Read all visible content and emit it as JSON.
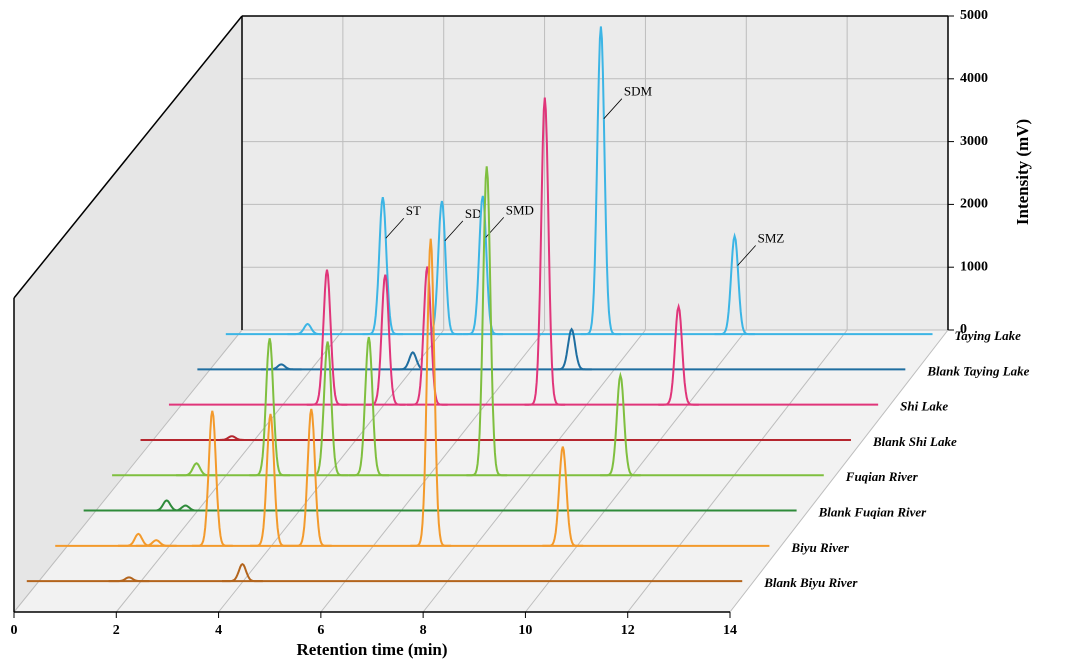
{
  "chart_data": {
    "type": "waterfall",
    "xlabel": "Retention time (min)",
    "zlabel": "Intensity (mV)",
    "xlim": [
      0,
      14
    ],
    "xticks": [
      0,
      2,
      4,
      6,
      8,
      10,
      12,
      14
    ],
    "zlim": [
      0,
      5000
    ],
    "zticks": [
      0,
      1000,
      2000,
      3000,
      4000,
      5000
    ],
    "grid": true,
    "series": [
      {
        "name": "Taying Lake",
        "color": "#3cb5e5",
        "x": [
          1.62,
          3.11,
          4.28,
          5.09,
          7.43,
          10.08
        ],
        "values": [
          160,
          2180,
          2120,
          2200,
          4900,
          1560
        ],
        "peak_labels": [
          null,
          "ST",
          "SD",
          "SMD",
          "SDM",
          "SMZ"
        ]
      },
      {
        "name": "Blank Taying Lake",
        "color": "#1f6ea0",
        "x": [
          1.66,
          4.26,
          7.4
        ],
        "values": [
          80,
          270,
          640
        ]
      },
      {
        "name": "Shi Lake",
        "color": "#e0357a",
        "x": [
          3.12,
          4.27,
          5.1,
          7.42,
          10.06
        ],
        "values": [
          2150,
          2070,
          2200,
          4890,
          1560
        ]
      },
      {
        "name": "Blank Shi Lake",
        "color": "#b5262e",
        "x": [
          1.8
        ],
        "values": [
          60
        ]
      },
      {
        "name": "Fuqian River",
        "color": "#7fbf3f",
        "x": [
          1.66,
          3.1,
          4.24,
          5.05,
          7.37,
          10.0
        ],
        "values": [
          190,
          2180,
          2130,
          2200,
          4920,
          1590
        ]
      },
      {
        "name": "Blank Fuqian River",
        "color": "#2e8b3a",
        "x": [
          1.63,
          2.0
        ],
        "values": [
          160,
          80
        ]
      },
      {
        "name": "Biyu River",
        "color": "#f39a2c",
        "x": [
          1.63,
          1.98,
          3.08,
          4.22,
          5.02,
          7.36,
          9.95
        ],
        "values": [
          190,
          90,
          2150,
          2100,
          2180,
          4890,
          1580
        ]
      },
      {
        "name": "Blank Biyu River",
        "color": "#b3641c",
        "x": [
          2.0,
          4.22
        ],
        "values": [
          60,
          270
        ]
      }
    ]
  }
}
